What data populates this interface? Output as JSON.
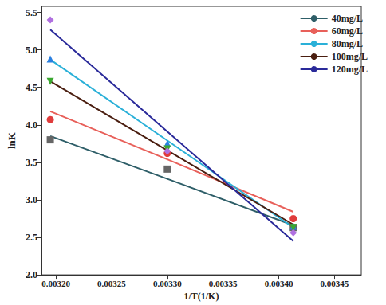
{
  "chart_data": {
    "type": "scatter",
    "x_label": "1/T(1/K)",
    "y_label": "lnK",
    "x": [
      0.003195,
      0.0033,
      0.003413
    ],
    "xlim": [
      0.003187,
      0.003474
    ],
    "xticks": [
      {
        "value": 0.0032,
        "label": "0.00320"
      },
      {
        "value": 0.00325,
        "label": "0.00325"
      },
      {
        "value": 0.0033,
        "label": "0.00330"
      },
      {
        "value": 0.00335,
        "label": "0.00335"
      },
      {
        "value": 0.0034,
        "label": "0.00340"
      },
      {
        "value": 0.00345,
        "label": "0.00345"
      }
    ],
    "ylim": [
      2.0,
      5.58
    ],
    "yticks": [
      {
        "value": 2.0,
        "label": "2.0"
      },
      {
        "value": 2.5,
        "label": "2.5"
      },
      {
        "value": 3.0,
        "label": "3.0"
      },
      {
        "value": 3.5,
        "label": "3.5"
      },
      {
        "value": 4.0,
        "label": "4.0"
      },
      {
        "value": 4.5,
        "label": "4.5"
      },
      {
        "value": 5.0,
        "label": "5.0"
      },
      {
        "value": 5.5,
        "label": "5.5"
      }
    ],
    "grid": false,
    "legend": "upper right",
    "series": [
      {
        "name": "40mg/L",
        "type": "line",
        "color": "#2e5e68",
        "values": [
          3.85,
          3.28,
          2.66
        ]
      },
      {
        "name": "60mg/L",
        "type": "line",
        "color": "#e8605a",
        "values": [
          4.18,
          3.54,
          2.84
        ]
      },
      {
        "name": "80mg/L",
        "type": "line",
        "color": "#2ab0d8",
        "values": [
          4.87,
          3.79,
          2.63
        ]
      },
      {
        "name": "100mg/L",
        "type": "line",
        "color": "#4a1e10",
        "values": [
          4.58,
          3.66,
          2.67
        ]
      },
      {
        "name": "120mg/L",
        "type": "line",
        "color": "#2a2a9a",
        "values": [
          5.27,
          3.91,
          2.45
        ]
      },
      {
        "type": "scatter",
        "marker": "square",
        "color": "#666666",
        "values": [
          3.8,
          3.41,
          2.63
        ]
      },
      {
        "type": "scatter",
        "marker": "circle",
        "color": "#e03c3c",
        "values": [
          4.07,
          3.62,
          2.75
        ]
      },
      {
        "type": "scatter",
        "marker": "triangle",
        "color": "#2a7fe0",
        "values": [
          4.88,
          3.75,
          2.65
        ]
      },
      {
        "type": "scatter",
        "marker": "triangle-down",
        "color": "#3aa830",
        "values": [
          4.58,
          3.68,
          2.63
        ]
      },
      {
        "type": "scatter",
        "marker": "diamond",
        "color": "#b070e0",
        "values": [
          5.4,
          3.65,
          2.56
        ]
      }
    ]
  }
}
